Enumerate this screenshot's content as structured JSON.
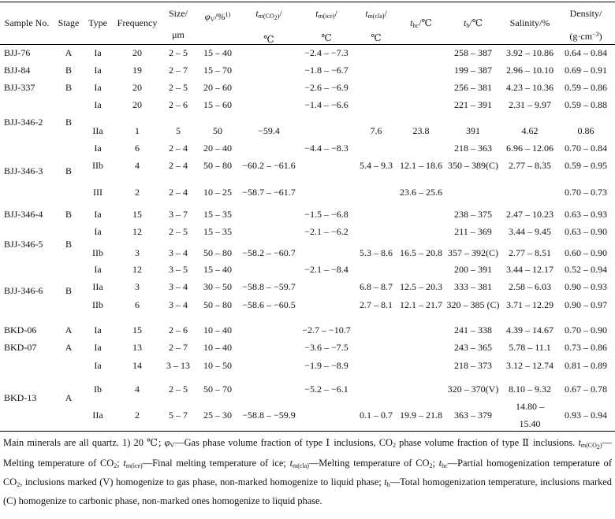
{
  "header": {
    "sample_no": "Sample No.",
    "stage": "Stage",
    "type": "Type",
    "frequency": "Frequency",
    "size_l1": "Size/",
    "size_l2": "μm",
    "phi_sym": "φ",
    "phi_sub": "V",
    "phi_rest": "/%",
    "phi_sup": "1)",
    "tm_co2_sym": "t",
    "tm_co2_sub": "m(CO",
    "tm_co2_sub2": "2",
    "tm_co2_close": ")",
    "tm_co2_tail": "/",
    "tm_co2_unit": "℃",
    "tm_ice_sym": "t",
    "tm_ice_sub": "m(ice)",
    "tm_ice_tail": "/",
    "tm_ice_unit": "℃",
    "tm_cla_sym": "t",
    "tm_cla_sub": "m(cla)",
    "tm_cla_tail": "/",
    "tm_cla_unit": "℃",
    "thc_sym": "t",
    "thc_sub": "hc",
    "thc_tail": "/℃",
    "th_sym": "t",
    "th_sub": "h",
    "th_tail": "/℃",
    "salinity": "Salinity/%",
    "density_l1": "Density/",
    "density_l2_a": "(g·cm",
    "density_l2_sup": "−3",
    "density_l2_b": ")"
  },
  "rows": [
    {
      "sample": "BJJ-76",
      "stage": "A",
      "type": "Ia",
      "freq": "20",
      "size": "2 – 5",
      "phi": "15 – 40",
      "tmco2": "",
      "tmice": "−2.4 – −7.3",
      "tmcla": "",
      "thc": "",
      "th": "258 – 387",
      "sal": "3.92 – 10.86",
      "den": "0.64 – 0.84"
    },
    {
      "sample": "BJJ-84",
      "stage": "B",
      "type": "Ia",
      "freq": "19",
      "size": "2 – 7",
      "phi": "15 – 70",
      "tmco2": "",
      "tmice": "−1.8 – −6.7",
      "tmcla": "",
      "thc": "",
      "th": "199 – 387",
      "sal": "2.96 – 10.10",
      "den": "0.69 – 0.91"
    },
    {
      "sample": "BJJ-337",
      "stage": "B",
      "type": "Ia",
      "freq": "20",
      "size": "2 – 5",
      "phi": "20 – 60",
      "tmco2": "",
      "tmice": "−2.6 – −6.9",
      "tmcla": "",
      "thc": "",
      "th": "256 – 381",
      "sal": "4.23 – 10.36",
      "den": "0.59 – 0.86"
    },
    {
      "sample": "",
      "stage": "",
      "type": "Ia",
      "freq": "20",
      "size": "2 – 6",
      "phi": "15 – 60",
      "tmco2": "",
      "tmice": "−1.4 – −6.6",
      "tmcla": "",
      "thc": "",
      "th": "221 – 391",
      "sal": "2.31 – 9.97",
      "den": "0.59 – 0.88"
    },
    {
      "sample": "",
      "stage": "",
      "type": "IIa",
      "freq": "1",
      "size": "5",
      "phi": "50",
      "tmco2": "−59.4",
      "tmice": "",
      "tmcla": "7.6",
      "thc": "23.8",
      "th": "391",
      "sal": "4.62",
      "den": "0.86"
    },
    {
      "sample": "",
      "stage": "",
      "type": "Ia",
      "freq": "6",
      "size": "2 – 4",
      "phi": "20 – 40",
      "tmco2": "",
      "tmice": "−4.4 – −8.3",
      "tmcla": "",
      "thc": "",
      "th": "218 – 363",
      "sal": "6.96 – 12.06",
      "den": "0.70 – 0.84"
    },
    {
      "sample": "",
      "stage": "",
      "type": "IIb",
      "freq": "4",
      "size": "2 – 4",
      "phi": "50 – 80",
      "tmco2": "−60.2 – −61.6",
      "tmice": "",
      "tmcla": "5.4 – 9.3",
      "thc": "12.1 – 18.6",
      "th": "350 – 389(C)",
      "sal": "2.77 – 8.35",
      "den": "0.59 – 0.95"
    },
    {
      "sample": "",
      "stage": "",
      "type": "III",
      "freq": "2",
      "size": "2 – 4",
      "phi": "10 – 25",
      "tmco2": "−58.7 – −61.7",
      "tmice": "",
      "tmcla": "",
      "thc": "23.6 – 25.6",
      "th": "",
      "sal": "",
      "den": "0.70 – 0.73"
    },
    {
      "sample": "BJJ-346-4",
      "stage": "B",
      "type": "Ia",
      "freq": "15",
      "size": "3 – 7",
      "phi": "15 – 35",
      "tmco2": "",
      "tmice": "−1.5 – −6.8",
      "tmcla": "",
      "thc": "",
      "th": "238 – 375",
      "sal": "2.47 – 10.23",
      "den": "0.63 – 0.93"
    },
    {
      "sample": "",
      "stage": "",
      "type": "Ia",
      "freq": "12",
      "size": "2 – 5",
      "phi": "15 – 35",
      "tmco2": "",
      "tmice": "−2.1 – −6.2",
      "tmcla": "",
      "thc": "",
      "th": "211 – 369",
      "sal": "3.44 – 9.45",
      "den": "0.63 – 0.90"
    },
    {
      "sample": "",
      "stage": "",
      "type": "IIb",
      "freq": "3",
      "size": "3 – 4",
      "phi": "50 – 80",
      "tmco2": "−58.2 – −60.7",
      "tmice": "",
      "tmcla": "5.3 – 8.6",
      "thc": "16.5 – 20.8",
      "th": "357 – 392(C)",
      "sal": "2.77 – 8.51",
      "den": "0.60 – 0.90"
    },
    {
      "sample": "",
      "stage": "",
      "type": "Ia",
      "freq": "12",
      "size": "3 – 5",
      "phi": "15 – 40",
      "tmco2": "",
      "tmice": "−2.1 – −8.4",
      "tmcla": "",
      "thc": "",
      "th": "200 – 391",
      "sal": "3.44 – 12.17",
      "den": "0.52 – 0.94"
    },
    {
      "sample": "",
      "stage": "",
      "type": "IIa",
      "freq": "3",
      "size": "3 – 4",
      "phi": "30 – 50",
      "tmco2": "−58.8 – −59.7",
      "tmice": "",
      "tmcla": "6.8 – 8.7",
      "thc": "12.5 – 20.3",
      "th": "333 – 381",
      "sal": "2.58 – 6.03",
      "den": "0.90 – 0.93"
    },
    {
      "sample": "",
      "stage": "",
      "type": "IIb",
      "freq": "6",
      "size": "3 – 4",
      "phi": "50 – 80",
      "tmco2": "−58.6 – −60.5",
      "tmice": "",
      "tmcla": "2.7 – 8.1",
      "thc": "12.1 – 21.7",
      "th": "320 – 385 (C)",
      "sal": "3.71 – 12.29",
      "den": "0.90 – 0.97"
    },
    {
      "sample": "BKD-06",
      "stage": "A",
      "type": "Ia",
      "freq": "15",
      "size": "2 – 6",
      "phi": "10 – 40",
      "tmco2": "",
      "tmice": "−2.7 – −10.7",
      "tmcla": "",
      "thc": "",
      "th": "241 – 338",
      "sal": "4.39 – 14.67",
      "den": "0.70 – 0.90"
    },
    {
      "sample": "BKD-07",
      "stage": "A",
      "type": "Ia",
      "freq": "13",
      "size": "2 – 7",
      "phi": "10 – 40",
      "tmco2": "",
      "tmice": "−3.6 – −7.5",
      "tmcla": "",
      "thc": "",
      "th": "243 – 365",
      "sal": "5.78 – 11.1",
      "den": "0.73 – 0.86"
    },
    {
      "sample": "",
      "stage": "",
      "type": "Ia",
      "freq": "14",
      "size": "3 – 13",
      "phi": "10 – 50",
      "tmco2": "",
      "tmice": "−1.9 – −8.9",
      "tmcla": "",
      "thc": "",
      "th": "218 – 373",
      "sal": "3.12 – 12.74",
      "den": "0.81 – 0.89"
    },
    {
      "sample": "",
      "stage": "",
      "type": "Ib",
      "freq": "4",
      "size": "2 – 5",
      "phi": "50 – 70",
      "tmco2": "",
      "tmice": "−5.2 – −6.1",
      "tmcla": "",
      "thc": "",
      "th": "320 – 370(V)",
      "sal": "8.10 – 9.32",
      "den": "0.67 – 0.78"
    }
  ],
  "last_row": {
    "type": "IIa",
    "freq": "2",
    "size": "5 – 7",
    "phi": "25 – 30",
    "tmco2": "−58.8 – −59.9",
    "tmice": "",
    "tmcla": "0.1 – 0.7",
    "thc": "19.9 – 21.8",
    "th": "363 – 379",
    "sal_l1": "14.80 –",
    "sal_l2": "15.40",
    "den": "0.93 – 0.94"
  },
  "floating_labels": [
    {
      "text": "BJJ-346-2",
      "stage": "B"
    },
    {
      "text": "BJJ-346-3",
      "stage": "B"
    },
    {
      "text": "BJJ-346-5",
      "stage": "B"
    },
    {
      "text": "BJJ-346-6",
      "stage": "B"
    },
    {
      "text": "BKD-13",
      "stage": "A"
    }
  ],
  "note": {
    "p1": "Main minerals are all quartz. 1) 20 ℃; ",
    "phi": "φ",
    "phi_sub": "V",
    "p2": "—Gas phase volume fraction of type Ⅰ inclusions, CO",
    "p2_sub": "2",
    "p3": " phase volume fraction of type Ⅱ inclusions. ",
    "t1": "t",
    "t1_sub": "m(CO",
    "t1_sub2": "2",
    "t1_close": ")",
    "p4": "—Melting temperature of CO",
    "p4_sub": "2",
    "p5": "; ",
    "t2": "t",
    "t2_sub": "m(ice)",
    "p6": "—Final melting temperature of ice; ",
    "t3": "t",
    "t3_sub": "m(cla)",
    "p7": "—Melting temperature of CO",
    "p7_sub": "2",
    "p8": "; ",
    "t4": "t",
    "t4_sub": "hc",
    "p9": "—Partial homogenization temperature of CO",
    "p9_sub": "2",
    "p10": ", inclusions marked (V) homogenize to gas phase, non-marked homogenize to liquid phase; ",
    "t5": "t",
    "t5_sub": "h",
    "p11": "—Total homogenization temperature, inclusions marked (C) homogenize to carbonic phase, non-marked ones homogenize to liquid phase."
  }
}
